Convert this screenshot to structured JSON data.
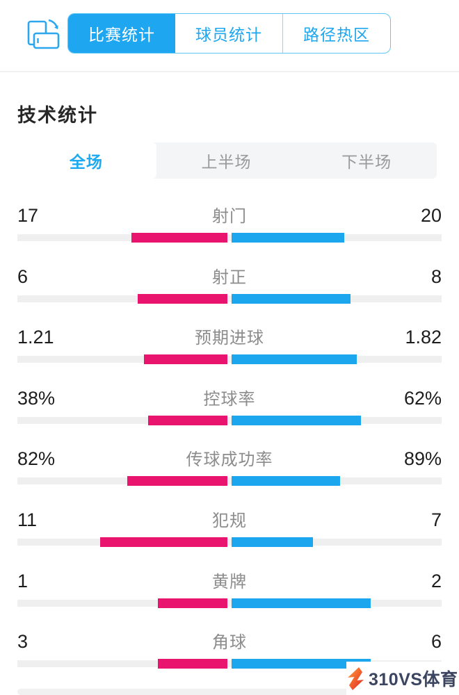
{
  "header": {
    "tabs": [
      {
        "label": "比赛统计",
        "active": true
      },
      {
        "label": "球员统计",
        "active": false
      },
      {
        "label": "路径热区",
        "active": false
      }
    ]
  },
  "section": {
    "title": "技术统计"
  },
  "period_tabs": [
    {
      "label": "全场",
      "active": true
    },
    {
      "label": "上半场",
      "active": false
    },
    {
      "label": "下半场",
      "active": false
    }
  ],
  "chart_data": {
    "type": "bar",
    "title": "技术统计",
    "period": "全场",
    "legend_position": "none",
    "series": [
      {
        "name": "home",
        "color": "#e8146e",
        "side": "left"
      },
      {
        "name": "away",
        "color": "#1ba6ee",
        "side": "right"
      }
    ],
    "rows": [
      {
        "label": "射门",
        "home_display": "17",
        "away_display": "20",
        "home": 17,
        "away": 20
      },
      {
        "label": "射正",
        "home_display": "6",
        "away_display": "8",
        "home": 6,
        "away": 8
      },
      {
        "label": "预期进球",
        "home_display": "1.21",
        "away_display": "1.82",
        "home": 1.21,
        "away": 1.82
      },
      {
        "label": "控球率",
        "home_display": "38%",
        "away_display": "62%",
        "home": 38,
        "away": 62
      },
      {
        "label": "传球成功率",
        "home_display": "82%",
        "away_display": "89%",
        "home": 82,
        "away": 89
      },
      {
        "label": "犯规",
        "home_display": "11",
        "away_display": "7",
        "home": 11,
        "away": 7
      },
      {
        "label": "黄牌",
        "home_display": "1",
        "away_display": "2",
        "home": 1,
        "away": 2
      },
      {
        "label": "角球",
        "home_display": "3",
        "away_display": "6",
        "home": 3,
        "away": 6
      }
    ]
  },
  "watermark": {
    "text": "310VS体育"
  },
  "colors": {
    "accent_blue": "#1ea7f0",
    "bar_pink": "#e8146e",
    "bar_blue": "#1ba6ee",
    "track_gray": "#efeff0",
    "label_gray": "#8c8c8c",
    "watermark_text": "#3b4560"
  }
}
